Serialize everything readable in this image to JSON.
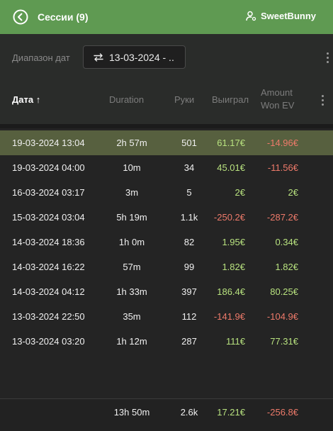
{
  "header": {
    "title": "Сессии (9)",
    "user": "SweetBunny"
  },
  "toolbar": {
    "range_label": "Диапазон дат",
    "range_value": "13-03-2024 - .."
  },
  "columns": {
    "date": "Дата ↑",
    "duration": "Duration",
    "hands": "Руки",
    "won": "Выиграл",
    "ev_line1": "Amount",
    "ev_line2": "Won EV"
  },
  "rows": [
    {
      "date": "19-03-2024 13:04",
      "duration": "2h 57m",
      "hands": "501",
      "won": "61.17€",
      "won_sign": "pos",
      "ev": "-14.96€",
      "ev_sign": "neg",
      "selected": true
    },
    {
      "date": "19-03-2024 04:00",
      "duration": "10m",
      "hands": "34",
      "won": "45.01€",
      "won_sign": "pos",
      "ev": "-11.56€",
      "ev_sign": "neg",
      "selected": false
    },
    {
      "date": "16-03-2024 03:17",
      "duration": "3m",
      "hands": "5",
      "won": "2€",
      "won_sign": "pos",
      "ev": "2€",
      "ev_sign": "pos",
      "selected": false
    },
    {
      "date": "15-03-2024 03:04",
      "duration": "5h 19m",
      "hands": "1.1k",
      "won": "-250.2€",
      "won_sign": "neg",
      "ev": "-287.2€",
      "ev_sign": "neg",
      "selected": false
    },
    {
      "date": "14-03-2024 18:36",
      "duration": "1h 0m",
      "hands": "82",
      "won": "1.95€",
      "won_sign": "pos",
      "ev": "0.34€",
      "ev_sign": "pos",
      "selected": false
    },
    {
      "date": "14-03-2024 16:22",
      "duration": "57m",
      "hands": "99",
      "won": "1.82€",
      "won_sign": "pos",
      "ev": "1.82€",
      "ev_sign": "pos",
      "selected": false
    },
    {
      "date": "14-03-2024 04:12",
      "duration": "1h 33m",
      "hands": "397",
      "won": "186.4€",
      "won_sign": "pos",
      "ev": "80.25€",
      "ev_sign": "pos",
      "selected": false
    },
    {
      "date": "13-03-2024 22:50",
      "duration": "35m",
      "hands": "112",
      "won": "-141.9€",
      "won_sign": "neg",
      "ev": "-104.9€",
      "ev_sign": "neg",
      "selected": false
    },
    {
      "date": "13-03-2024 03:20",
      "duration": "1h 12m",
      "hands": "287",
      "won": "111€",
      "won_sign": "pos",
      "ev": "77.31€",
      "ev_sign": "pos",
      "selected": false
    }
  ],
  "totals": {
    "duration": "13h 50m",
    "hands": "2.6k",
    "won": "17.21€",
    "won_sign": "pos",
    "ev": "-256.8€",
    "ev_sign": "neg"
  },
  "colors": {
    "header_bg": "#5f9a52",
    "selected_row": "#57603f",
    "positive": "#b8e27f",
    "negative": "#ee7a6a"
  },
  "icons": {
    "back": "circle-chevron-left-icon",
    "user": "user-gear-icon",
    "swap": "swap-arrows-icon",
    "menu": "kebab-menu-icon"
  }
}
